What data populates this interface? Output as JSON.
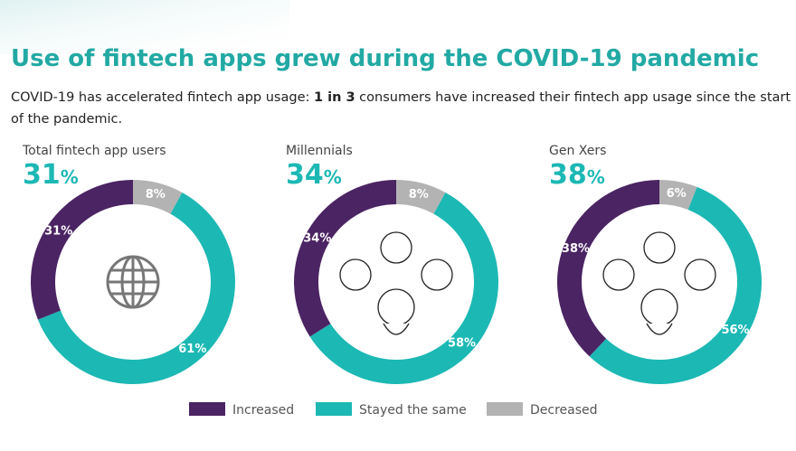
{
  "title": "Use of fintech apps grew during the COVID-19 pandemic",
  "subtitle": {
    "before": "COVID-19 has accelerated fintech app usage: ",
    "bold": "1 in 3",
    "after_line1": " consumers have increased their fintech app usage since the start",
    "line2": "of the pandemic."
  },
  "chart_data": [
    {
      "type": "donut",
      "title": "Total fintech app users",
      "highlight": "31%",
      "icon": "globe",
      "categories": [
        "Increased",
        "Stayed the same",
        "Decreased"
      ],
      "values": [
        31,
        61,
        8
      ],
      "value_labels": [
        "31%",
        "61%",
        "8%"
      ],
      "colors": [
        "#4b2463",
        "#1cb8b4",
        "#b3b3b3"
      ]
    },
    {
      "type": "donut",
      "title": "Millennials",
      "highlight": "34%",
      "icon": "face",
      "categories": [
        "Increased",
        "Stayed the same",
        "Decreased"
      ],
      "values": [
        34,
        58,
        8
      ],
      "value_labels": [
        "34%",
        "58%",
        "8%"
      ],
      "colors": [
        "#4b2463",
        "#1cb8b4",
        "#b3b3b3"
      ]
    },
    {
      "type": "donut",
      "title": "Gen Xers",
      "highlight": "38%",
      "icon": "face",
      "categories": [
        "Increased",
        "Stayed the same",
        "Decreased"
      ],
      "values": [
        38,
        56,
        6
      ],
      "value_labels": [
        "38%",
        "56%",
        "6%"
      ],
      "colors": [
        "#4b2463",
        "#1cb8b4",
        "#b3b3b3"
      ]
    }
  ]
}
